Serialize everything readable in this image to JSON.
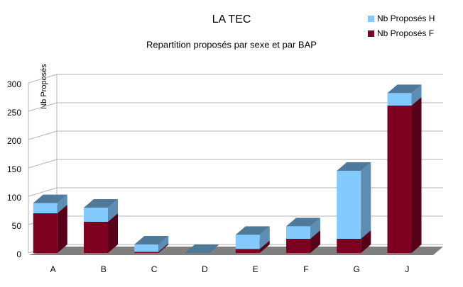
{
  "chart_data": {
    "type": "bar3d-stacked",
    "title": "LA TEC",
    "subtitle": "Repartition proposés par sexe et par BAP",
    "y_label": "Nb Proposés",
    "categories": [
      "A",
      "B",
      "C",
      "D",
      "E",
      "F",
      "G",
      "J"
    ],
    "series": [
      {
        "name": "Nb Proposés H",
        "color": "#83caff",
        "values": [
          18,
          25,
          13,
          0,
          25,
          22,
          120,
          22
        ]
      },
      {
        "name": "Nb Proposés F",
        "color": "#7e0021",
        "values": [
          70,
          55,
          2,
          0,
          7,
          25,
          25,
          260
        ]
      }
    ],
    "ylim": [
      0,
      300
    ],
    "yticks": [
      0,
      50,
      100,
      150,
      200,
      250,
      300
    ],
    "grid": true,
    "legend": "top-right"
  }
}
